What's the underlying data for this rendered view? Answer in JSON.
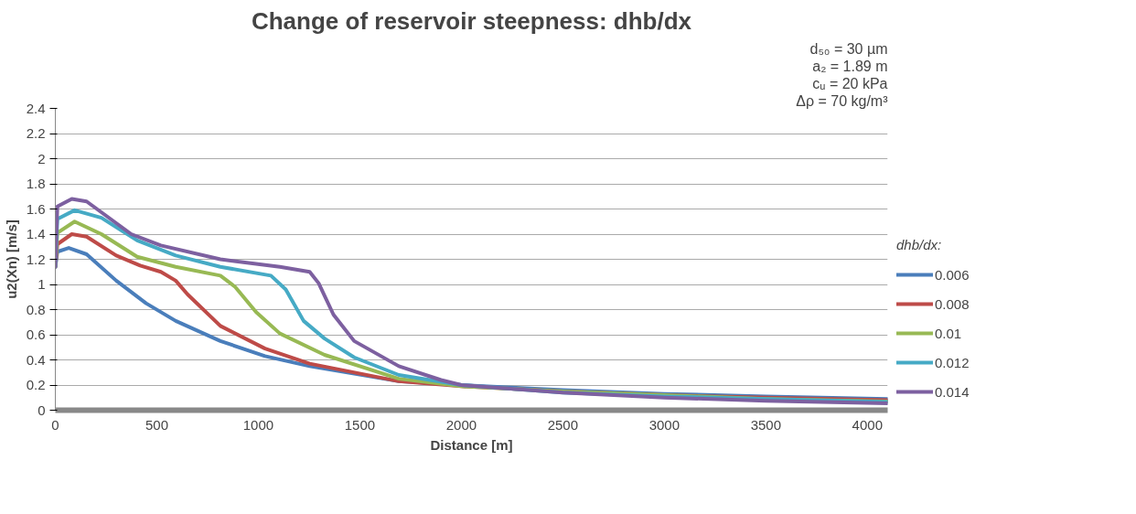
{
  "chart_data": {
    "type": "line",
    "title": "Change of reservoir steepness: dhb/dx",
    "xlabel": "Distance [m]",
    "ylabel": "u2(Xn) [m/s]",
    "legend_title": "dhb/dx:",
    "annotations": [
      "d₅₀ = 30 µm",
      "a₂ = 1.89 m",
      "cᵤ = 20 kPa",
      "Δρ = 70 kg/m³"
    ],
    "xlim": [
      0,
      4100
    ],
    "xticks": [
      0,
      500,
      1000,
      1500,
      2000,
      2500,
      3000,
      3500,
      4000
    ],
    "ylim": [
      0,
      2.4
    ],
    "yticks": [
      0,
      {
        "value": 0.2,
        "label": "0.2"
      },
      {
        "value": 0.4,
        "label": "0.4"
      },
      {
        "value": 0.6,
        "label": "0.6"
      },
      {
        "value": 0.8,
        "label": "0.8"
      },
      1,
      {
        "value": 1.2,
        "label": "1.2"
      },
      {
        "value": 1.4,
        "label": "1.4"
      },
      {
        "value": 1.6,
        "label": "1.6"
      },
      {
        "value": 1.8,
        "label": "1.8"
      },
      2,
      {
        "value": 2.2,
        "label": "2.2"
      },
      {
        "value": 2.4,
        "label": "2.4"
      }
    ],
    "grid": "y",
    "legend": "right",
    "marker": "none",
    "line_style": "solid",
    "series": [
      {
        "name": "0.006",
        "color": "#4a7ebb",
        "x": [
          0,
          10,
          66,
          154,
          300,
          447,
          593,
          813,
          1033,
          1253,
          1692,
          2000,
          2500,
          3000,
          3500,
          4100
        ],
        "values": [
          1.14,
          1.26,
          1.29,
          1.24,
          1.03,
          0.85,
          0.71,
          0.55,
          0.43,
          0.35,
          0.23,
          0.2,
          0.16,
          0.13,
          0.11,
          0.09
        ]
      },
      {
        "name": "0.008",
        "color": "#be4b48",
        "x": [
          0,
          10,
          81,
          154,
          300,
          418,
          520,
          593,
          652,
          813,
          1033,
          1253,
          1692,
          2000,
          2500,
          3000,
          3500,
          4100
        ],
        "values": [
          1.14,
          1.32,
          1.4,
          1.38,
          1.23,
          1.15,
          1.1,
          1.03,
          0.92,
          0.67,
          0.49,
          0.37,
          0.23,
          0.19,
          0.15,
          0.12,
          0.1,
          0.08
        ]
      },
      {
        "name": "0.01",
        "color": "#98b954",
        "x": [
          0,
          10,
          95,
          227,
          403,
          593,
          813,
          886,
          989,
          1106,
          1326,
          1692,
          2000,
          2500,
          3000,
          3500,
          4100
        ],
        "values": [
          1.14,
          1.41,
          1.5,
          1.4,
          1.22,
          1.14,
          1.07,
          0.98,
          0.78,
          0.61,
          0.44,
          0.25,
          0.19,
          0.15,
          0.12,
          0.09,
          0.07
        ]
      },
      {
        "name": "0.012",
        "color": "#46aac5",
        "x": [
          0,
          10,
          95,
          227,
          403,
          593,
          813,
          1062,
          1135,
          1223,
          1326,
          1472,
          1692,
          2000,
          2500,
          3000,
          3500,
          4100
        ],
        "values": [
          1.14,
          1.52,
          1.59,
          1.53,
          1.35,
          1.23,
          1.14,
          1.07,
          0.96,
          0.71,
          0.57,
          0.42,
          0.28,
          0.2,
          0.14,
          0.11,
          0.09,
          0.065
        ]
      },
      {
        "name": "0.014",
        "color": "#7d60a0",
        "x": [
          0,
          10,
          81,
          154,
          374,
          520,
          813,
          1106,
          1253,
          1297,
          1370,
          1472,
          1692,
          1900,
          2000,
          2500,
          3000,
          3500,
          4100
        ],
        "values": [
          1.14,
          1.62,
          1.68,
          1.66,
          1.4,
          1.31,
          1.2,
          1.14,
          1.1,
          1.01,
          0.76,
          0.55,
          0.35,
          0.24,
          0.2,
          0.14,
          0.1,
          0.075,
          0.055
        ]
      }
    ]
  }
}
